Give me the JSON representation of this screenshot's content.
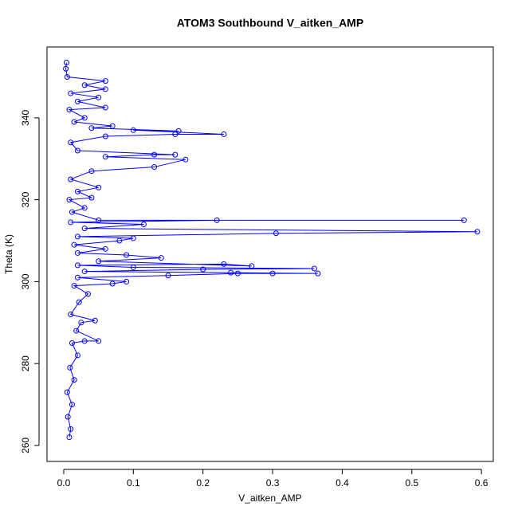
{
  "chart_data": {
    "type": "line",
    "title": "ATOM3 Southbound V_aitken_AMP",
    "x_label": "V_aitken_AMP",
    "y_label": "Theta (K)",
    "color": "#0000ff",
    "marker": "circle",
    "x": [
      0.008,
      0.01,
      0.006,
      0.012,
      0.005,
      0.015,
      0.009,
      0.02,
      0.012,
      0.03,
      0.05,
      0.018,
      0.025,
      0.045,
      0.01,
      0.022,
      0.035,
      0.015,
      0.07,
      0.09,
      0.02,
      0.15,
      0.25,
      0.3,
      0.365,
      0.24,
      0.03,
      0.2,
      0.36,
      0.1,
      0.02,
      0.23,
      0.27,
      0.05,
      0.14,
      0.09,
      0.02,
      0.06,
      0.015,
      0.08,
      0.1,
      0.02,
      0.305,
      0.594,
      0.03,
      0.115,
      0.01,
      0.22,
      0.575,
      0.05,
      0.012,
      0.03,
      0.008,
      0.04,
      0.02,
      0.05,
      0.01,
      0.04,
      0.13,
      0.175,
      0.06,
      0.13,
      0.16,
      0.02,
      0.01,
      0.06,
      0.16,
      0.23,
      0.1,
      0.165,
      0.04,
      0.07,
      0.015,
      0.03,
      0.008,
      0.06,
      0.02,
      0.05,
      0.01,
      0.06,
      0.03,
      0.06,
      0.005,
      0.003,
      0.004
    ],
    "values": [
      262,
      264,
      267,
      270,
      273,
      276,
      279,
      282,
      285,
      285.5,
      285.5,
      288,
      290,
      290.5,
      292,
      295,
      297,
      299,
      299.5,
      300,
      301,
      301.5,
      302,
      302,
      302,
      302.2,
      302.5,
      303,
      303.2,
      303.5,
      304,
      304.3,
      303.8,
      305,
      305.8,
      306.5,
      307,
      308,
      309,
      310,
      310.6,
      311,
      311.8,
      312.2,
      313,
      314,
      314.5,
      315,
      315,
      315,
      317,
      318,
      320,
      320.5,
      322,
      323,
      325,
      327,
      328,
      329.8,
      330.5,
      331,
      331,
      332,
      334,
      335.5,
      336,
      336,
      337,
      336.8,
      337.5,
      338,
      339,
      340,
      342,
      342.5,
      344,
      345,
      346,
      347,
      348,
      349,
      350,
      352,
      353.5
    ],
    "xlim": [
      -0.024,
      0.617
    ],
    "ylim": [
      256.1,
      357.3
    ],
    "xticks": [
      {
        "value": 0,
        "label": "0.0"
      },
      0.1,
      0.2,
      0.3,
      0.4,
      0.5,
      0.6
    ],
    "yticks": [
      260,
      280,
      300,
      320,
      340
    ]
  }
}
